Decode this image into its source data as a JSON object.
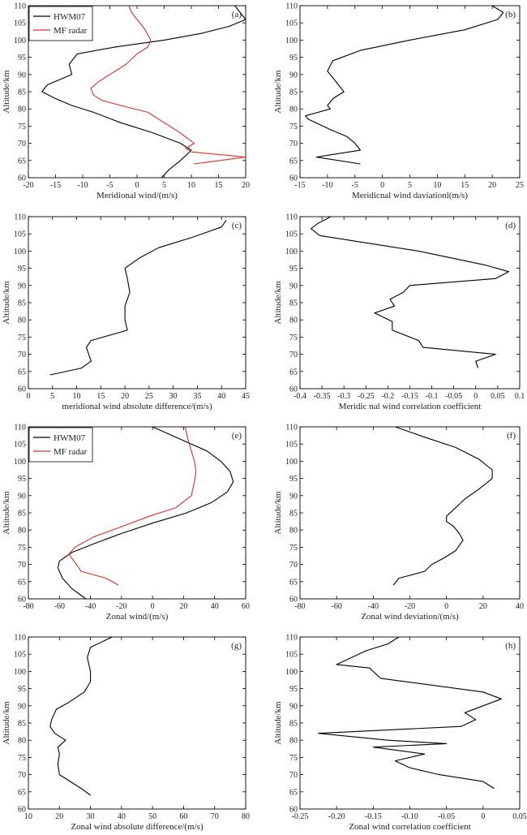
{
  "chart_data": [
    {
      "panel": "(a)",
      "type": "line",
      "xlabel": "Meridional wind/(m/s)",
      "ylabel": "Altitude/km",
      "xlim": [
        -20,
        20
      ],
      "ylim": [
        60,
        110
      ],
      "xticks": [
        -20,
        -15,
        -10,
        -5,
        0,
        5,
        10,
        15,
        20
      ],
      "xtick_labels": [
        "-20",
        "-15",
        "-10",
        "-5",
        "0",
        "5",
        "10",
        "15",
        "20"
      ],
      "yticks": [
        60,
        65,
        70,
        75,
        80,
        85,
        90,
        95,
        100,
        105,
        110
      ],
      "ytick_labels": [
        "60",
        "65",
        "70",
        "75",
        "80",
        "85",
        "90",
        "95",
        "100",
        "105",
        "110"
      ],
      "legend": "top-left",
      "series": [
        {
          "name": "HWM07",
          "color": "#000000",
          "x": [
            4.5,
            6,
            8,
            10,
            8,
            3,
            -3,
            -8,
            -12,
            -15,
            -17.5,
            -16.5,
            -12,
            -12.5,
            -11,
            -4,
            5,
            12,
            17,
            20,
            19,
            18
          ],
          "y": [
            60,
            62.5,
            65,
            68,
            70,
            73,
            76,
            79,
            81,
            83,
            85,
            87,
            90,
            93,
            96,
            98,
            100,
            102,
            104,
            106,
            108,
            110
          ]
        },
        {
          "name": "MF radar",
          "color": "#e0302a",
          "x": [
            10.5,
            20,
            10,
            9,
            10.5,
            8,
            5,
            2,
            -3,
            -6.5,
            -8,
            -8.5,
            -7,
            -5,
            -2,
            0,
            2,
            2.5,
            1.5,
            0,
            -1,
            -1.5
          ],
          "y": [
            64,
            66,
            67.5,
            68.5,
            70,
            73,
            76,
            79,
            81,
            82.5,
            84,
            86,
            88,
            90,
            93,
            96,
            98,
            100,
            103,
            106,
            108,
            110
          ]
        }
      ]
    },
    {
      "panel": "(b)",
      "type": "line",
      "xlabel": "Meridicnal wind daviationl(m/s)",
      "ylabel": "Altitude/km",
      "xlim": [
        -15,
        25
      ],
      "ylim": [
        60,
        110
      ],
      "xticks": [
        -15,
        -10,
        -5,
        0,
        5,
        10,
        15,
        20,
        25
      ],
      "xtick_labels": [
        "-15",
        "-10",
        "-5",
        "0",
        "5",
        "10",
        "15",
        "20",
        "25"
      ],
      "yticks": [
        60,
        65,
        70,
        75,
        80,
        85,
        90,
        95,
        100,
        105,
        110
      ],
      "ytick_labels": [
        "60",
        "65",
        "70",
        "75",
        "80",
        "85",
        "90",
        "95",
        "100",
        "105",
        "110"
      ],
      "series": [
        {
          "color": "#000000",
          "x": [
            -4,
            -12,
            -4,
            -5,
            -6.5,
            -9.5,
            -13.5,
            -14,
            -9.5,
            -10,
            -9,
            -7,
            -8,
            -9,
            -10,
            -9,
            -4,
            5,
            15,
            21,
            22,
            20
          ],
          "y": [
            64,
            66,
            68,
            70,
            72,
            74,
            77,
            78,
            80,
            81,
            83,
            85,
            87,
            89,
            91,
            94,
            97,
            100,
            103,
            106,
            108,
            110
          ]
        }
      ]
    },
    {
      "panel": "(c)",
      "type": "line",
      "xlabel": "meridional wind absolute difference/(m/s)",
      "ylabel": "Altitude/km",
      "xlim": [
        0,
        45
      ],
      "ylim": [
        60,
        110
      ],
      "xticks": [
        0,
        5,
        10,
        15,
        20,
        25,
        30,
        35,
        40,
        45
      ],
      "xtick_labels": [
        "0",
        "5",
        "10",
        "15",
        "20",
        "25",
        "30",
        "35",
        "40",
        "45"
      ],
      "yticks": [
        60,
        65,
        70,
        75,
        80,
        85,
        90,
        95,
        100,
        105,
        110
      ],
      "ytick_labels": [
        "60",
        "65",
        "70",
        "75",
        "80",
        "85",
        "90",
        "95",
        "100",
        "105",
        "110"
      ],
      "series": [
        {
          "color": "#000000",
          "x": [
            4.5,
            11,
            13,
            12.5,
            12,
            13,
            20.5,
            20,
            20,
            21,
            20.5,
            20,
            23,
            27,
            34,
            40,
            41
          ],
          "y": [
            64,
            66,
            68,
            70,
            72,
            74,
            77,
            80,
            84,
            88,
            92,
            95,
            98,
            101,
            104,
            107,
            109
          ]
        }
      ]
    },
    {
      "panel": "(d)",
      "type": "line",
      "xlabel": "Meridic nal wind correlation coefficient",
      "ylabel": "Altitude/km",
      "xlim": [
        -0.4,
        0.1
      ],
      "ylim": [
        60,
        110
      ],
      "xticks": [
        -0.4,
        -0.35,
        -0.3,
        -0.25,
        -0.2,
        -0.15,
        -0.1,
        -0.05,
        0,
        0.05,
        0.1
      ],
      "xtick_labels": [
        "-0.4",
        "-0.35",
        "-0.3",
        "-0.25",
        "-0.2",
        "-0.15",
        "-0.1",
        "-0.05",
        "0",
        "0.05",
        "0.1"
      ],
      "yticks": [
        60,
        65,
        70,
        75,
        80,
        85,
        90,
        95,
        100,
        105,
        110
      ],
      "ytick_labels": [
        "60",
        "65",
        "70",
        "75",
        "80",
        "85",
        "90",
        "95",
        "100",
        "105",
        "110"
      ],
      "series": [
        {
          "color": "#000000",
          "x": [
            0.005,
            0,
            0.045,
            -0.12,
            -0.13,
            -0.19,
            -0.19,
            -0.23,
            -0.185,
            -0.195,
            -0.165,
            -0.15,
            0.045,
            0.075,
            0.02,
            -0.13,
            -0.355,
            -0.375,
            -0.36,
            -0.33
          ],
          "y": [
            66,
            68,
            70,
            72,
            74,
            77,
            79.5,
            82,
            84,
            86,
            88,
            90,
            92,
            94,
            96,
            100,
            104.5,
            106.5,
            108,
            110
          ]
        }
      ]
    },
    {
      "panel": "(e)",
      "type": "line",
      "xlabel": "Zonal wind/(m/s)",
      "ylabel": "Altitude/km",
      "xlim": [
        -80,
        60
      ],
      "ylim": [
        60,
        110
      ],
      "xticks": [
        -80,
        -60,
        -40,
        -20,
        0,
        20,
        40,
        60
      ],
      "xtick_labels": [
        "-80",
        "-60",
        "-40",
        "-20",
        "0",
        "20",
        "40",
        "60"
      ],
      "yticks": [
        60,
        65,
        70,
        75,
        80,
        85,
        90,
        95,
        100,
        105,
        110
      ],
      "ytick_labels": [
        "60",
        "65",
        "70",
        "75",
        "80",
        "85",
        "90",
        "95",
        "100",
        "105",
        "110"
      ],
      "legend": "top-left",
      "series": [
        {
          "name": "HWM07",
          "color": "#000000",
          "x": [
            -43,
            -52,
            -58,
            -61,
            -60,
            -52,
            -38,
            -20,
            0,
            22,
            38,
            48,
            52,
            50,
            44,
            35,
            20,
            0
          ],
          "y": [
            60,
            63,
            66,
            69,
            71,
            73.5,
            76,
            79,
            82,
            85,
            88,
            91,
            94,
            97,
            100,
            103,
            106,
            110
          ]
        },
        {
          "name": "MF radar",
          "color": "#e0302a",
          "x": [
            -22,
            -30,
            -46,
            -49,
            -54,
            -50,
            -38,
            -20,
            -2,
            15,
            25,
            27,
            28,
            27,
            25,
            23,
            22,
            21
          ],
          "y": [
            64,
            66,
            68,
            70,
            73,
            75,
            78,
            81,
            84,
            86.5,
            90,
            94,
            97,
            100,
            103,
            106,
            108,
            110
          ]
        }
      ]
    },
    {
      "panel": "(f)",
      "type": "line",
      "xlabel": "Zonal wind deviation/(m/s)",
      "ylabel": "Altitude/km",
      "xlim": [
        -80,
        40
      ],
      "ylim": [
        60,
        110
      ],
      "xticks": [
        -80,
        -60,
        -40,
        -20,
        0,
        20,
        40
      ],
      "xtick_labels": [
        "-80",
        "-60",
        "-40",
        "-20",
        "0",
        "20",
        "40"
      ],
      "yticks": [
        60,
        65,
        70,
        75,
        80,
        85,
        90,
        95,
        100,
        105,
        110
      ],
      "ytick_labels": [
        "60",
        "65",
        "70",
        "75",
        "80",
        "85",
        "90",
        "95",
        "100",
        "105",
        "110"
      ],
      "series": [
        {
          "color": "#000000",
          "x": [
            -29,
            -26,
            -12,
            -8,
            -1,
            5,
            9,
            7,
            4,
            0,
            0,
            4,
            10,
            18,
            25,
            25,
            18,
            5,
            -12,
            -28
          ],
          "y": [
            64,
            66,
            68,
            70,
            72,
            74,
            77,
            79,
            81,
            82.5,
            84,
            86,
            89,
            92,
            95,
            97.5,
            100.5,
            104,
            107,
            110
          ]
        }
      ]
    },
    {
      "panel": "(g)",
      "type": "line",
      "xlabel": "Zonal wind absolute difference/(m/s)",
      "ylabel": "Altitude/km",
      "xlim": [
        10,
        80
      ],
      "ylim": [
        60,
        110
      ],
      "xticks": [
        10,
        20,
        30,
        40,
        50,
        60,
        70,
        80
      ],
      "xtick_labels": [
        "10",
        "20",
        "30",
        "40",
        "50",
        "60",
        "70",
        "80"
      ],
      "yticks": [
        60,
        65,
        70,
        75,
        80,
        85,
        90,
        95,
        100,
        105,
        110
      ],
      "ytick_labels": [
        "60",
        "65",
        "70",
        "75",
        "80",
        "85",
        "90",
        "95",
        "100",
        "105",
        "110"
      ],
      "series": [
        {
          "color": "#000000",
          "x": [
            30,
            27,
            20,
            19.5,
            20,
            19.5,
            22,
            18.5,
            17,
            17.5,
            19,
            23,
            28,
            30,
            30,
            29,
            30,
            37
          ],
          "y": [
            64,
            66,
            70,
            73,
            76,
            78,
            80,
            82,
            84,
            86,
            89,
            91,
            94,
            97,
            100,
            104,
            107,
            110
          ]
        }
      ]
    },
    {
      "panel": "(h)",
      "type": "line",
      "xlabel": "Zonal wind correlation coefficient",
      "ylabel": "Altitude/km",
      "xlim": [
        -0.25,
        0.05
      ],
      "ylim": [
        60,
        110
      ],
      "xticks": [
        -0.25,
        -0.2,
        -0.15,
        -0.1,
        -0.05,
        0,
        0.05
      ],
      "xtick_labels": [
        "-0.25",
        "-0.20",
        "-0.15",
        "-0.10",
        "-0.05",
        "0",
        "0.05"
      ],
      "yticks": [
        60,
        65,
        70,
        75,
        80,
        85,
        90,
        95,
        100,
        105,
        110
      ],
      "ytick_labels": [
        "60",
        "65",
        "70",
        "75",
        "80",
        "85",
        "90",
        "95",
        "100",
        "105",
        "110"
      ],
      "series": [
        {
          "color": "#000000",
          "x": [
            0.015,
            0,
            -0.06,
            -0.1,
            -0.12,
            -0.08,
            -0.15,
            -0.05,
            -0.13,
            -0.225,
            -0.03,
            -0.01,
            -0.025,
            0,
            0.025,
            0,
            -0.14,
            -0.155,
            -0.2,
            -0.16,
            -0.13,
            -0.115
          ],
          "y": [
            66,
            68,
            70,
            72,
            74,
            76,
            78,
            79,
            80,
            82,
            84,
            86,
            88,
            90,
            92,
            94,
            98,
            101,
            102,
            106,
            108,
            110
          ]
        }
      ]
    }
  ]
}
